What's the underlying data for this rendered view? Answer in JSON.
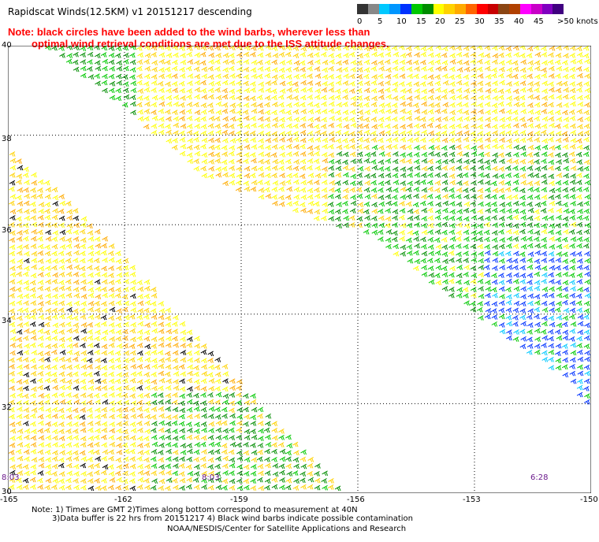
{
  "title": "Rapidscat Winds(12.5KM) v1 20151217 descending",
  "note_line1": "Note: black circles have been added to the wind barbs, wherever less than",
  "note_line2": "optimal wind retrieval conditions are met due to the ISS attitude changes.",
  "legend": {
    "labels": [
      "0",
      "5",
      "10",
      "15",
      "20",
      "25",
      "30",
      "35",
      "40",
      "45",
      ">50 knots"
    ],
    "colors": [
      "#333333",
      "#888888",
      "#00c8ff",
      "#0096ff",
      "#0032ff",
      "#00c800",
      "#008c00",
      "#ffff00",
      "#ffd200",
      "#ffaa00",
      "#ff6400",
      "#ff0000",
      "#c80000",
      "#8b4513",
      "#b04000",
      "#ff00ff",
      "#c800c8",
      "#8000c0",
      "#400080"
    ]
  },
  "lat_labels": [
    "40",
    "38",
    "36",
    "34",
    "32",
    "30"
  ],
  "lon_labels": [
    "-165",
    "-162",
    "-159",
    "-156",
    "-153",
    "-150"
  ],
  "time_labels": [
    "8:03",
    "8:03",
    "6:28"
  ],
  "footer": {
    "line1": "Note: 1) Times are GMT 2)Times along bottom correspond to measurement at 40N",
    "line2": "3)Data buffer is 22 hrs from 20151217 4) Black wind barbs indicate possible contamination",
    "line3": "NOAA/NESDIS/Center for Satellite Applications and Research"
  }
}
